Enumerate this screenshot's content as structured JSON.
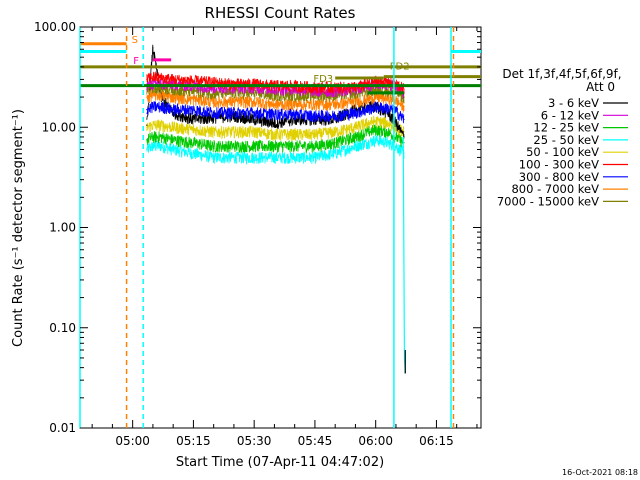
{
  "chart_data": {
    "type": "line",
    "title": "RHESSI Count Rates",
    "xlabel": "Start Time (07-Apr-11 04:47:02)",
    "ylabel": "Count Rate (s⁻¹ detector segment⁻¹)",
    "yscale": "log",
    "ylim": [
      0.01,
      100
    ],
    "y_ticks": [
      0.01,
      0.1,
      1,
      10,
      100
    ],
    "y_tick_labels": [
      "0.01",
      "0.10",
      "1.00",
      "10.00",
      "100.00"
    ],
    "xlim_min": [
      -13,
      86
    ],
    "x_ticks_min": [
      0,
      15,
      30,
      45,
      60,
      75
    ],
    "x_tick_labels": [
      "05:00",
      "05:15",
      "05:30",
      "05:45",
      "06:00",
      "06:15"
    ],
    "grid": false,
    "legend_placement": "right",
    "legend_header": [
      "Det 1f,3f,4f,5f,6f,9f,",
      "Att 0"
    ],
    "timestamp": "16-Oct-2021 08:18",
    "x_minutes": [
      3.5,
      5,
      7,
      10,
      15,
      20,
      25,
      30,
      35,
      40,
      45,
      50,
      55,
      58,
      60,
      63,
      65,
      67
    ],
    "series": [
      {
        "name": "3 - 6 keV",
        "color": "#000000",
        "values": [
          10.5,
          62,
          20,
          14,
          12,
          12.5,
          13,
          12,
          11,
          12,
          12,
          12,
          15,
          16,
          16,
          14,
          11,
          8
        ]
      },
      {
        "name": "6 - 12 keV",
        "color": "#d400d4",
        "values": [
          26,
          27,
          27,
          27,
          26,
          25,
          25,
          25,
          24,
          24,
          23,
          23,
          24,
          26,
          27,
          27,
          26,
          22
        ]
      },
      {
        "name": "12 - 25 keV",
        "color": "#00c800",
        "values": [
          7.5,
          8,
          8,
          7.5,
          7,
          6.5,
          6.5,
          6.5,
          6.5,
          6.5,
          6.5,
          7,
          8,
          9,
          9.5,
          9,
          8,
          7
        ]
      },
      {
        "name": "25 - 50 keV",
        "color": "#00ffff",
        "values": [
          6,
          6.5,
          6.5,
          6,
          5.5,
          5,
          5,
          5,
          5,
          5,
          5,
          5.5,
          6.5,
          7,
          7.5,
          7,
          6.5,
          5.5
        ]
      },
      {
        "name": "50 - 100 keV",
        "color": "#e0d000",
        "values": [
          10,
          10.5,
          10.5,
          10,
          9.5,
          9,
          9,
          9,
          8.5,
          8.5,
          8.5,
          9,
          10,
          11,
          11.5,
          11,
          10,
          9
        ]
      },
      {
        "name": "100 - 300 keV",
        "color": "#ff0000",
        "values": [
          30,
          32,
          31,
          30,
          29,
          28,
          27,
          27,
          26,
          26,
          25,
          25,
          25,
          27,
          29,
          28,
          27,
          24
        ]
      },
      {
        "name": "300 - 800 keV",
        "color": "#0000ff",
        "values": [
          15,
          16,
          16,
          15,
          15,
          14,
          14,
          14,
          13.5,
          13.5,
          13,
          13,
          14,
          15,
          16,
          15.5,
          14.5,
          12
        ]
      },
      {
        "name": "800 - 7000 keV",
        "color": "#ff8000",
        "values": [
          20,
          21,
          21,
          20,
          19,
          18,
          18,
          18,
          17,
          17,
          17,
          17,
          18,
          19,
          20,
          19.5,
          18.5,
          16
        ]
      },
      {
        "name": "7000 - 15000 keV",
        "color": "#808000",
        "values": [
          24,
          25,
          25,
          24,
          23,
          22,
          22,
          22,
          21,
          21,
          21,
          21,
          22,
          23,
          24,
          23.5,
          22.5,
          20
        ]
      }
    ],
    "level_bars": [
      {
        "label": "",
        "color": "#808000",
        "y": 40,
        "x_range": [
          -13,
          86
        ]
      },
      {
        "label": "",
        "color": "#008000",
        "y": 26,
        "x_range": [
          -13,
          86
        ]
      },
      {
        "label": "",
        "color": "#00ffff",
        "y": 57,
        "x_range": [
          -13,
          -1.5
        ]
      },
      {
        "label": "",
        "color": "#00ffff",
        "y": 57,
        "x_range": [
          78.5,
          86
        ]
      },
      {
        "label": "S",
        "color": "#ff8000",
        "y": 68,
        "x_range": [
          -13,
          -1.5
        ]
      },
      {
        "label": "F",
        "color": "#ff00aa",
        "y": 47,
        "x_range": [
          5,
          9.5
        ]
      },
      {
        "label": "FD2",
        "color": "#808000",
        "y": 32,
        "x_range": [
          62,
          86
        ]
      },
      {
        "label": "FD3",
        "color": "#808000",
        "y": 31,
        "x_range": [
          50,
          62
        ]
      },
      {
        "label": "",
        "color": "#008000",
        "y": 22,
        "x_range": [
          58,
          67
        ]
      }
    ],
    "vertical_lines": [
      {
        "x": -13,
        "color": "#00ffff",
        "style": "solid"
      },
      {
        "x": -1.5,
        "color": "#ff8000",
        "style": "dashed"
      },
      {
        "x": 2.6,
        "color": "#00ffff",
        "style": "dashed"
      },
      {
        "x": 64.5,
        "color": "#00ffff",
        "style": "solid"
      },
      {
        "x": 78.6,
        "color": "#00ffff",
        "style": "solid"
      },
      {
        "x": 79.2,
        "color": "#ff8000",
        "style": "dashed"
      }
    ],
    "drop_trace": {
      "color": "#00ffff",
      "x": [
        66.8,
        67.1,
        67.3
      ],
      "values": [
        8,
        0.05,
        0.035
      ]
    }
  }
}
